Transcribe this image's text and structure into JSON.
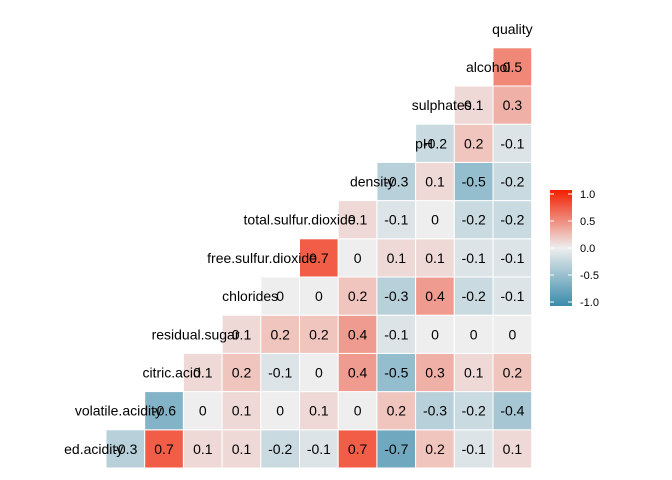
{
  "chart_data": {
    "type": "heatmap",
    "variables": [
      "ed.acidity",
      "volatile.acidity",
      "citric.acid",
      "residual.sugar",
      "chlorides",
      "free.sulfur.dioxide",
      "total.sulfur.dioxide",
      "density",
      "pH",
      "sulphates",
      "alcohol",
      "quality"
    ],
    "matrix": [
      [
        -0.3,
        0.7,
        0.1,
        0.1,
        -0.2,
        -0.1,
        0.7,
        -0.7,
        0.2,
        -0.1,
        0.1
      ],
      [
        -0.6,
        0,
        0.1,
        0,
        0.1,
        0,
        0.2,
        -0.3,
        -0.2,
        -0.4
      ],
      [
        0.1,
        0.2,
        -0.1,
        0,
        0.4,
        -0.5,
        0.3,
        0.1,
        0.2
      ],
      [
        0.1,
        0.2,
        0.2,
        0.4,
        -0.1,
        0,
        0,
        0
      ],
      [
        0,
        0,
        0.2,
        -0.3,
        0.4,
        -0.2,
        -0.1
      ],
      [
        0.7,
        0,
        0.1,
        0.1,
        -0.1,
        -0.1
      ],
      [
        0.1,
        -0.1,
        0,
        -0.2,
        -0.2
      ],
      [
        -0.3,
        0.1,
        -0.5,
        -0.2
      ],
      [
        -0.2,
        0.2,
        -0.1
      ],
      [
        0.1,
        0.3
      ],
      [
        0.5
      ]
    ],
    "legend": {
      "position": "right",
      "min": -1.0,
      "max": 1.0,
      "ticks": [
        "1.0",
        "0.5",
        "0.0",
        "-0.5",
        "-1.0"
      ],
      "low_color": "#3a8bab",
      "mid_color": "#eeeeee",
      "high_color": "#f21f00"
    },
    "grid": false
  }
}
